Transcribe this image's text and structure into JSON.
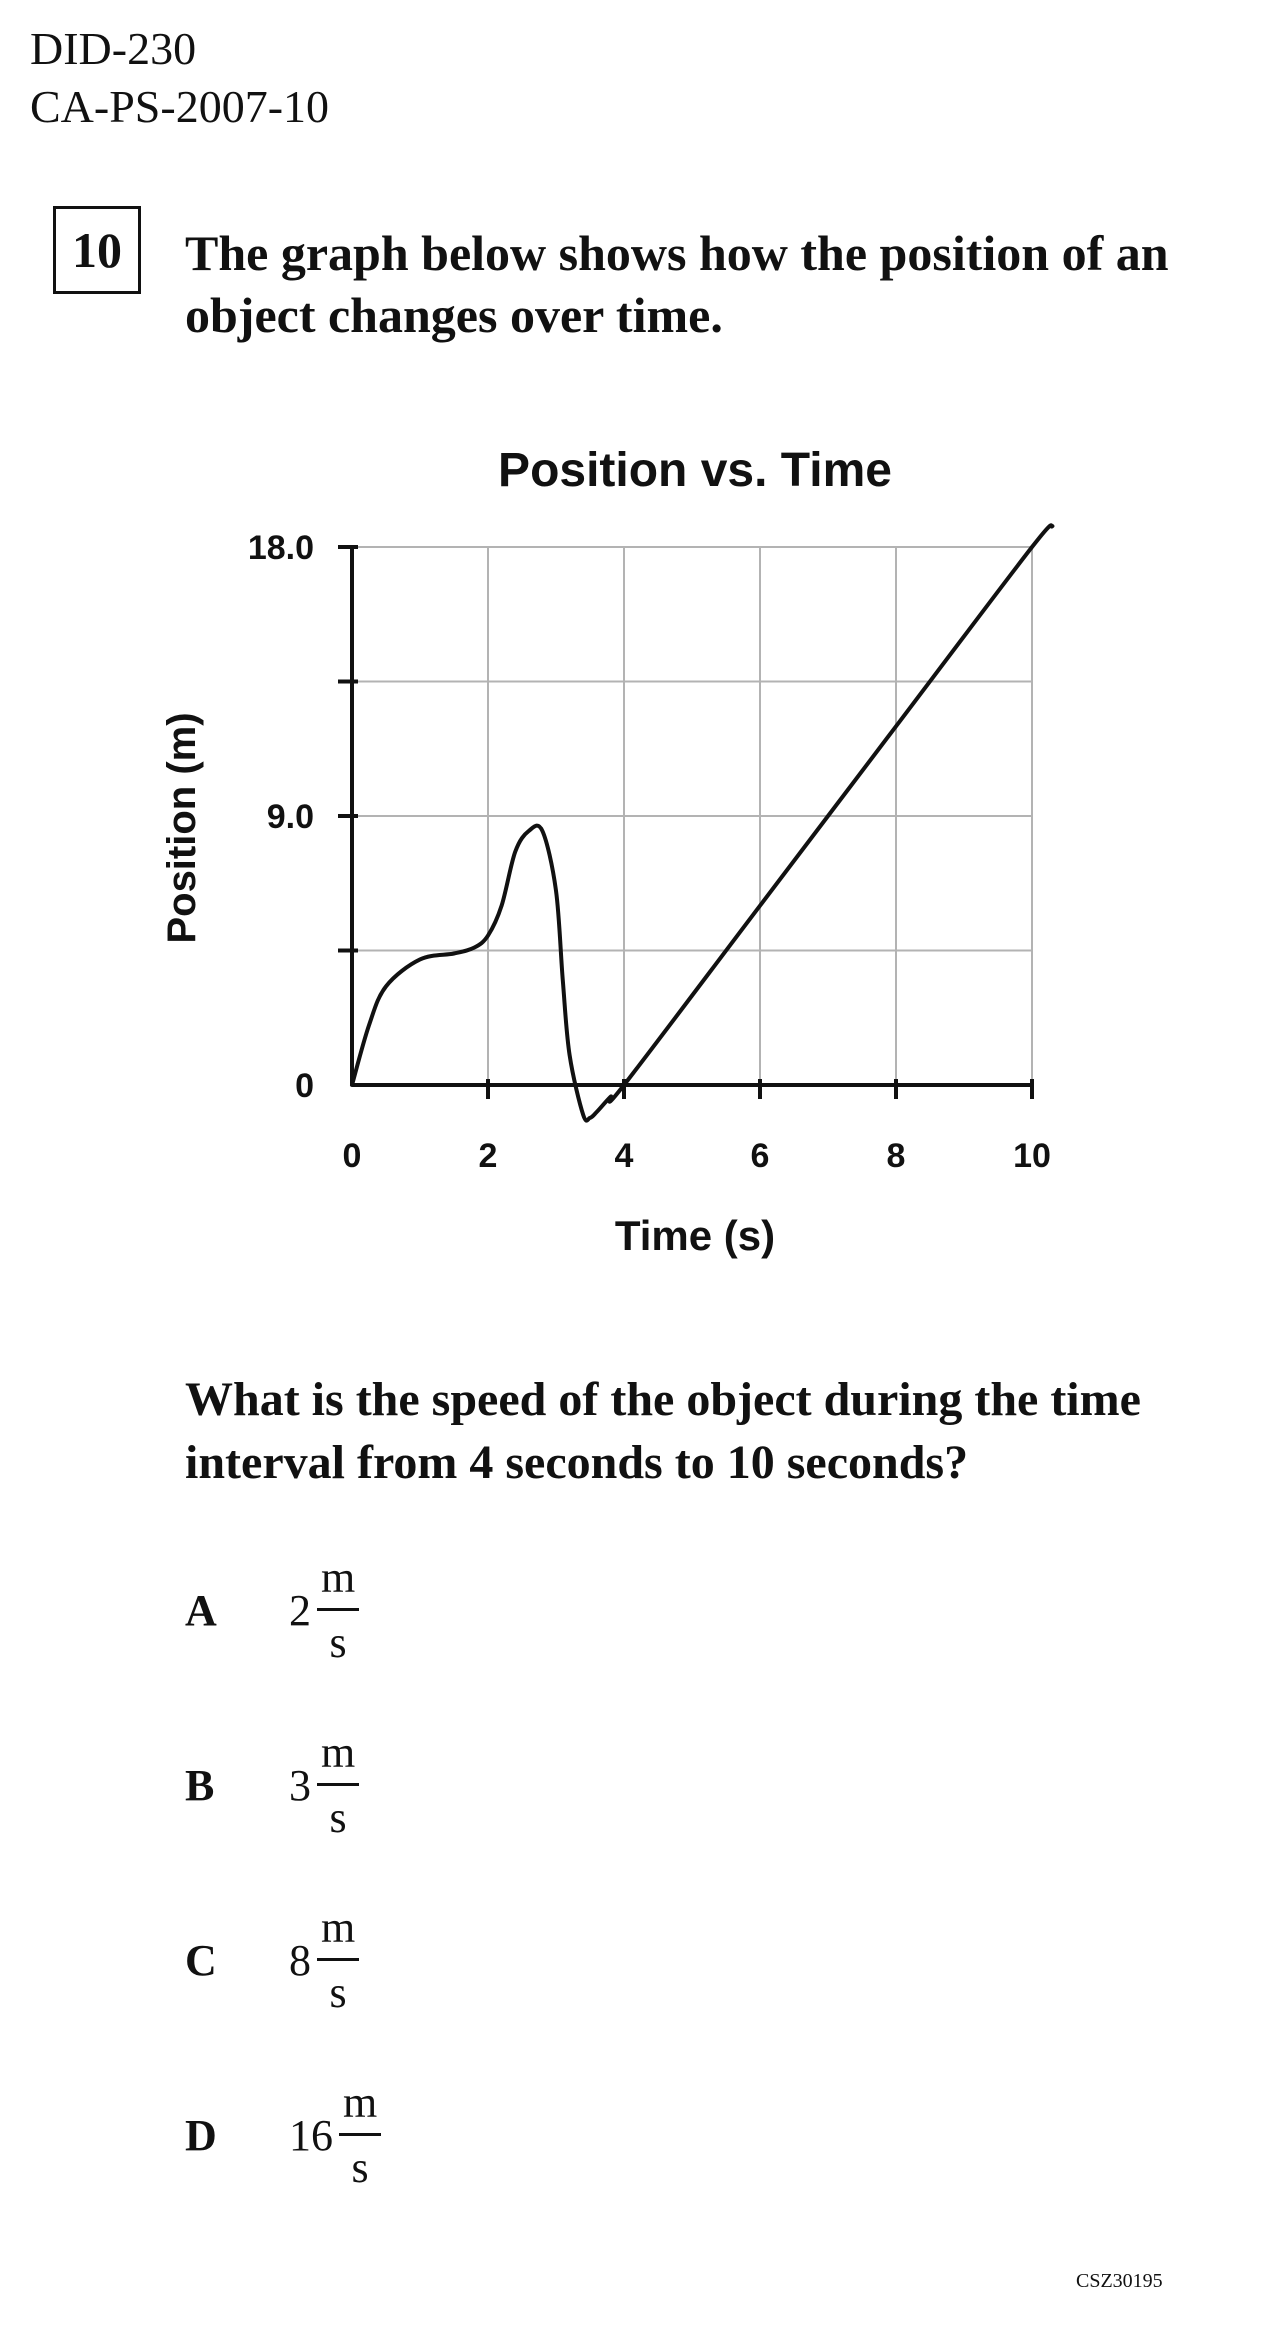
{
  "header": {
    "line1": "DID-230",
    "line2": "CA-PS-2007-10"
  },
  "question_number": "10",
  "prompt": "The graph below shows how the position of an object changes over time.",
  "chart_data": {
    "type": "line",
    "title": "Position vs. Time",
    "xlabel": "Time (s)",
    "ylabel": "Position (m)",
    "xlim": [
      0,
      10
    ],
    "ylim": [
      0,
      18
    ],
    "x_tick_labels": [
      "0",
      "2",
      "4",
      "6",
      "8",
      "10"
    ],
    "y_tick_labels": [
      "0",
      "9.0",
      "18.0"
    ],
    "grid": true,
    "series": [
      {
        "x": [
          0,
          0.25,
          0.5,
          1.0,
          1.5,
          1.8,
          2.0,
          2.2,
          2.4,
          2.6,
          2.8,
          3.0,
          3.1,
          3.2,
          3.4,
          3.5,
          3.6,
          3.8,
          4.0,
          6.0,
          8.0,
          10.0,
          10.3
        ],
        "y": [
          0,
          2.0,
          3.3,
          4.2,
          4.4,
          4.6,
          5.0,
          6.0,
          7.8,
          8.5,
          8.5,
          6.5,
          3.5,
          1.0,
          -1.0,
          -1.1,
          -0.9,
          -0.4,
          0,
          6.0,
          12.0,
          18.0,
          18.7
        ]
      }
    ]
  },
  "question": "What is the speed of the object during the time interval from 4 seconds to 10 seconds?",
  "choices": [
    {
      "letter": "A",
      "value": "2",
      "unit_num": "m",
      "unit_den": "s"
    },
    {
      "letter": "B",
      "value": "3",
      "unit_num": "m",
      "unit_den": "s"
    },
    {
      "letter": "C",
      "value": "8",
      "unit_num": "m",
      "unit_den": "s"
    },
    {
      "letter": "D",
      "value": "16",
      "unit_num": "m",
      "unit_den": "s"
    }
  ],
  "item_code": "CSZ30195"
}
